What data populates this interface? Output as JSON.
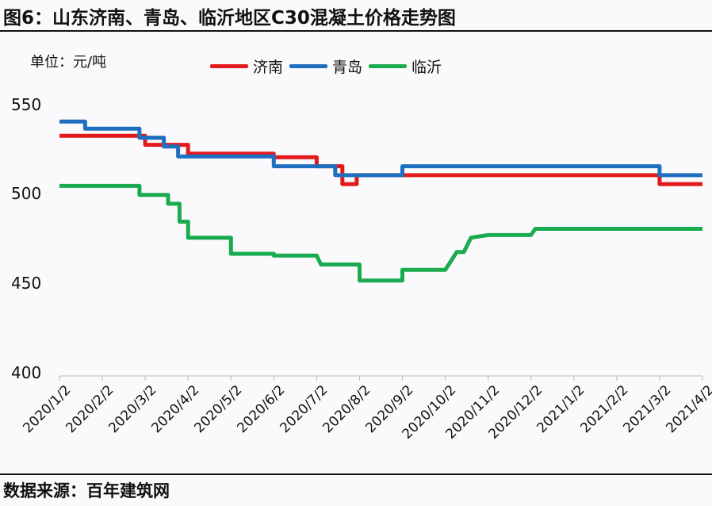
{
  "title": "图6：山东济南、青岛、临沂地区C30混凝土价格走势图",
  "unit_label": "单位：元/吨",
  "source": "数据来源：百年建筑网",
  "legend": [
    {
      "name": "济南",
      "color": "#e31a1c"
    },
    {
      "name": "青岛",
      "color": "#1f6fbf"
    },
    {
      "name": "临沂",
      "color": "#1aab4f"
    }
  ],
  "yticks": [
    "550",
    "500",
    "450",
    "400"
  ],
  "xticks": [
    "2020/1/2",
    "2020/2/2",
    "2020/3/2",
    "2020/4/2",
    "2020/5/2",
    "2020/6/2",
    "2020/7/2",
    "2020/8/2",
    "2020/9/2",
    "2020/10/2",
    "2020/11/2",
    "2020/12/2",
    "2021/1/2",
    "2021/2/2",
    "2021/3/2",
    "2021/4/2"
  ],
  "chart_data": {
    "type": "line",
    "title": "图6：山东济南、青岛、临沂地区C30混凝土价格走势图",
    "xlabel": "",
    "ylabel": "单位：元/吨",
    "ylim": [
      400,
      550
    ],
    "grid": false,
    "legend_position": "top",
    "categories": [
      "2020/1/2",
      "2020/2/2",
      "2020/3/2",
      "2020/4/2",
      "2020/5/2",
      "2020/6/2",
      "2020/7/2",
      "2020/8/2",
      "2020/9/2",
      "2020/10/2",
      "2020/11/2",
      "2020/12/2",
      "2021/1/2",
      "2021/2/2",
      "2021/3/2",
      "2021/4/2"
    ],
    "series": [
      {
        "name": "济南",
        "color": "#e31a1c",
        "points": [
          [
            "2020/1/2",
            533
          ],
          [
            "2020/2/2",
            533
          ],
          [
            "2020/3/2",
            533
          ],
          [
            "2020/3/2",
            528
          ],
          [
            "2020/4/2",
            528
          ],
          [
            "2020/4/2",
            523
          ],
          [
            "2020/6/2",
            523
          ],
          [
            "2020/6/2",
            521
          ],
          [
            "2020/7/2",
            521
          ],
          [
            "2020/7/2",
            516
          ],
          [
            "2020/7/20",
            516
          ],
          [
            "2020/7/20",
            506
          ],
          [
            "2020/7/30",
            506
          ],
          [
            "2020/7/30",
            511
          ],
          [
            "2020/9/2",
            511
          ],
          [
            "2021/3/2",
            511
          ],
          [
            "2021/3/2",
            506
          ],
          [
            "2021/4/2",
            506
          ]
        ]
      },
      {
        "name": "青岛",
        "color": "#1f6fbf",
        "points": [
          [
            "2020/1/2",
            541
          ],
          [
            "2020/1/20",
            541
          ],
          [
            "2020/1/20",
            537
          ],
          [
            "2020/2/28",
            537
          ],
          [
            "2020/2/28",
            532
          ],
          [
            "2020/3/15",
            532
          ],
          [
            "2020/3/15",
            527
          ],
          [
            "2020/3/25",
            527
          ],
          [
            "2020/3/25",
            521.5
          ],
          [
            "2020/6/2",
            521.5
          ],
          [
            "2020/6/2",
            516
          ],
          [
            "2020/7/2",
            516
          ],
          [
            "2020/7/15",
            516
          ],
          [
            "2020/7/15",
            511
          ],
          [
            "2020/9/2",
            511
          ],
          [
            "2020/9/2",
            516
          ],
          [
            "2021/3/2",
            516
          ],
          [
            "2021/3/2",
            511
          ],
          [
            "2021/4/2",
            511
          ]
        ]
      },
      {
        "name": "临沂",
        "color": "#1aab4f",
        "points": [
          [
            "2020/1/2",
            505
          ],
          [
            "2020/2/28",
            505
          ],
          [
            "2020/2/28",
            500
          ],
          [
            "2020/3/18",
            500
          ],
          [
            "2020/3/18",
            495
          ],
          [
            "2020/3/26",
            495
          ],
          [
            "2020/3/26",
            485
          ],
          [
            "2020/4/2",
            485
          ],
          [
            "2020/4/2",
            476
          ],
          [
            "2020/5/2",
            476
          ],
          [
            "2020/5/2",
            467
          ],
          [
            "2020/6/2",
            467
          ],
          [
            "2020/6/2",
            466
          ],
          [
            "2020/7/2",
            466
          ],
          [
            "2020/7/5",
            461
          ],
          [
            "2020/8/2",
            461
          ],
          [
            "2020/8/2",
            452
          ],
          [
            "2020/9/2",
            452
          ],
          [
            "2020/9/2",
            458
          ],
          [
            "2020/10/2",
            458
          ],
          [
            "2020/10/10",
            468
          ],
          [
            "2020/10/15",
            468
          ],
          [
            "2020/10/20",
            476
          ],
          [
            "2020/11/2",
            477.5
          ],
          [
            "2020/12/2",
            477.5
          ],
          [
            "2020/12/5",
            481
          ],
          [
            "2021/4/2",
            481
          ]
        ]
      }
    ]
  }
}
